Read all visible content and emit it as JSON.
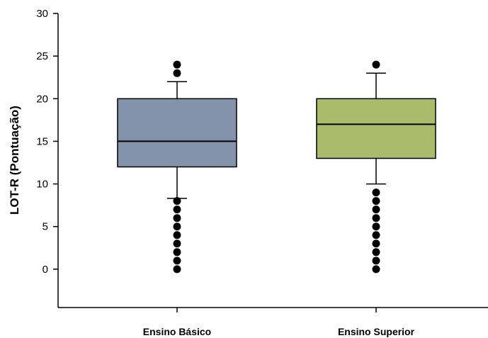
{
  "chart_data": {
    "type": "boxplot",
    "ylabel": "LOT-R (Pontuação)",
    "ylim": [
      -4.5,
      30
    ],
    "yticks": [
      0,
      5,
      10,
      15,
      20,
      25,
      30
    ],
    "categories": [
      "Ensino Básico",
      "Ensino Superior"
    ],
    "boxes": [
      {
        "category": "Ensino Básico",
        "color": "#8293ab",
        "whisker_low": 8.3,
        "q1": 12,
        "median": 15,
        "q3": 20,
        "whisker_high": 22,
        "outliers": [
          0,
          1,
          2,
          3,
          4,
          5,
          6,
          7,
          8,
          23,
          24
        ]
      },
      {
        "category": "Ensino Superior",
        "color": "#abbb6c",
        "whisker_low": 10,
        "q1": 13,
        "median": 17,
        "q3": 20,
        "whisker_high": 23,
        "outliers": [
          0,
          1,
          2,
          3,
          4,
          5,
          6,
          7,
          8,
          9,
          24
        ]
      }
    ]
  }
}
